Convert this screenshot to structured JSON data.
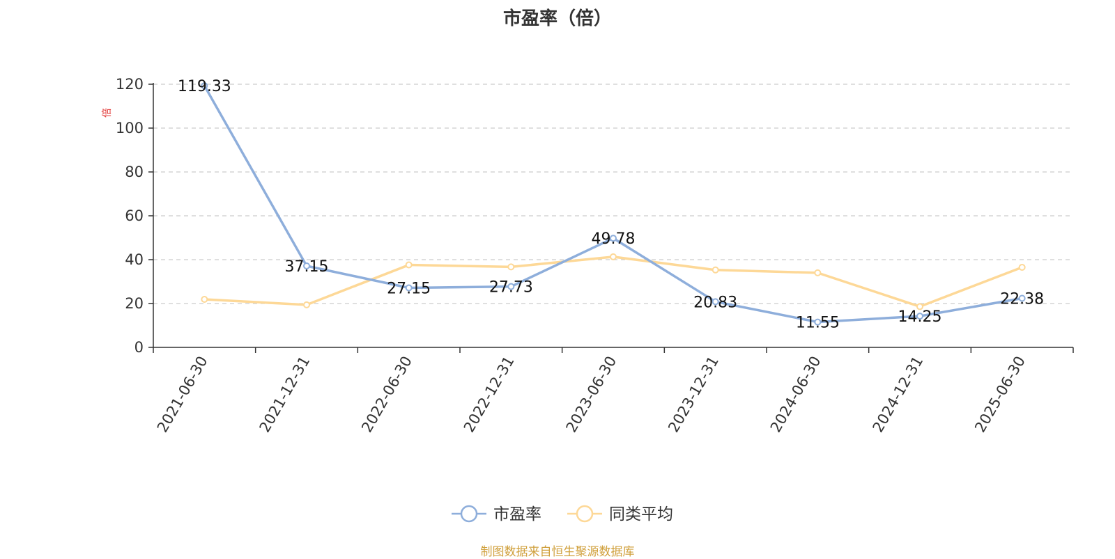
{
  "chart_data": {
    "type": "line",
    "title": "市盈率（倍）",
    "ylabel": "倍",
    "ylim": [
      0,
      120
    ],
    "yticks": [
      0,
      20,
      40,
      60,
      80,
      100,
      120
    ],
    "grid": true,
    "legend_position": "bottom",
    "categories": [
      "2021-06-30",
      "2021-12-31",
      "2022-06-30",
      "2022-12-31",
      "2023-06-30",
      "2023-12-31",
      "2024-06-30",
      "2024-12-31",
      "2025-06-30"
    ],
    "series": [
      {
        "name": "市盈率",
        "color": "#8eaedb",
        "values": [
          119.33,
          37.15,
          27.15,
          27.73,
          49.78,
          20.83,
          11.55,
          14.25,
          22.38
        ],
        "labels": [
          "119.33",
          "37.15",
          "27.15",
          "27.73",
          "49.78",
          "20.83",
          "11.55",
          "14.25",
          "22.38"
        ]
      },
      {
        "name": "同类平均",
        "color": "#fdd897",
        "values": [
          21.9,
          19.4,
          37.6,
          36.7,
          41.3,
          35.3,
          34.0,
          18.6,
          36.5
        ]
      }
    ]
  },
  "source_note": "制图数据来自恒生聚源数据库",
  "colors": {
    "axis": "#333333",
    "grid": "#cccccc",
    "ylabel": "#e0312f",
    "source": "#d0a03c"
  }
}
